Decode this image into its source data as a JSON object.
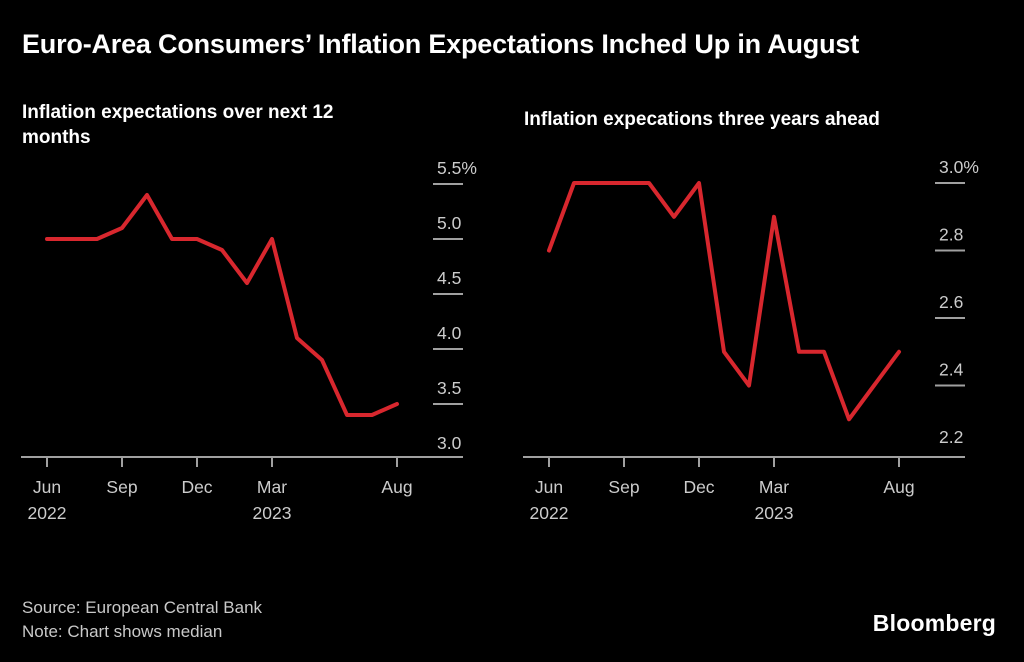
{
  "header": {
    "title": "Euro-Area Consumers’ Inflation Expectations Inched Up in August"
  },
  "footer": {
    "source": "Source: European Central Bank",
    "note": "Note: Chart shows median",
    "logo": "Bloomberg"
  },
  "colors": {
    "background": "#000000",
    "line_red": "#d8272e",
    "axis_line": "#a0a0a0",
    "axis_text": "#cccccc",
    "title_text": "#ffffff",
    "footer_text": "#c9c9c9"
  },
  "chart_data": [
    {
      "type": "line",
      "title": "Inflation expectations over next 12 months",
      "title_lines": [
        "Inflation expectations over next 12",
        "months"
      ],
      "x": [
        "Jun 2022",
        "Jul 2022",
        "Aug 2022",
        "Sep 2022",
        "Oct 2022",
        "Nov 2022",
        "Dec 2022",
        "Jan 2023",
        "Feb 2023",
        "Mar 2023",
        "Apr 2023",
        "May 2023",
        "Jun 2023",
        "Jul 2023",
        "Aug 2023"
      ],
      "values": [
        5.0,
        5.0,
        5.0,
        5.1,
        5.4,
        5.0,
        5.0,
        4.9,
        4.6,
        5.0,
        4.1,
        3.9,
        3.4,
        3.4,
        3.5
      ],
      "unit": "%",
      "ylim": [
        3.0,
        5.5
      ],
      "grid": false,
      "legend": "none",
      "y_ticks": [
        {
          "value": 5.5,
          "label": "5.5%"
        },
        {
          "value": 5.0,
          "label": "5.0"
        },
        {
          "value": 4.5,
          "label": "4.5"
        },
        {
          "value": 4.0,
          "label": "4.0"
        },
        {
          "value": 3.5,
          "label": "3.5"
        },
        {
          "value": 3.0,
          "label": "3.0"
        }
      ],
      "x_ticks": [
        {
          "index": 0,
          "label": "Jun",
          "sublabel": "2022"
        },
        {
          "index": 3,
          "label": "Sep",
          "sublabel": ""
        },
        {
          "index": 6,
          "label": "Dec",
          "sublabel": ""
        },
        {
          "index": 9,
          "label": "Mar",
          "sublabel": "2023"
        },
        {
          "index": 14,
          "label": "Aug",
          "sublabel": ""
        }
      ]
    },
    {
      "type": "line",
      "title": "Inflation expecations three years ahead",
      "title_lines": [
        "Inflation expecations three years ahead"
      ],
      "x": [
        "Jun 2022",
        "Jul 2022",
        "Aug 2022",
        "Sep 2022",
        "Oct 2022",
        "Nov 2022",
        "Dec 2022",
        "Jan 2023",
        "Feb 2023",
        "Mar 2023",
        "Apr 2023",
        "May 2023",
        "Jun 2023",
        "Jul 2023",
        "Aug 2023"
      ],
      "values": [
        2.8,
        3.0,
        3.0,
        3.0,
        3.0,
        2.9,
        3.0,
        2.5,
        2.4,
        2.9,
        2.5,
        2.5,
        2.3,
        2.4,
        2.5
      ],
      "unit": "%",
      "ylim": [
        2.2,
        3.0
      ],
      "grid": false,
      "legend": "none",
      "y_ticks": [
        {
          "value": 3.0,
          "label": "3.0%"
        },
        {
          "value": 2.8,
          "label": "2.8"
        },
        {
          "value": 2.6,
          "label": "2.6"
        },
        {
          "value": 2.4,
          "label": "2.4"
        },
        {
          "value": 2.2,
          "label": "2.2"
        }
      ],
      "x_ticks": [
        {
          "index": 0,
          "label": "Jun",
          "sublabel": "2022"
        },
        {
          "index": 3,
          "label": "Sep",
          "sublabel": ""
        },
        {
          "index": 6,
          "label": "Dec",
          "sublabel": ""
        },
        {
          "index": 9,
          "label": "Mar",
          "sublabel": "2023"
        },
        {
          "index": 14,
          "label": "Aug",
          "sublabel": ""
        }
      ]
    }
  ]
}
